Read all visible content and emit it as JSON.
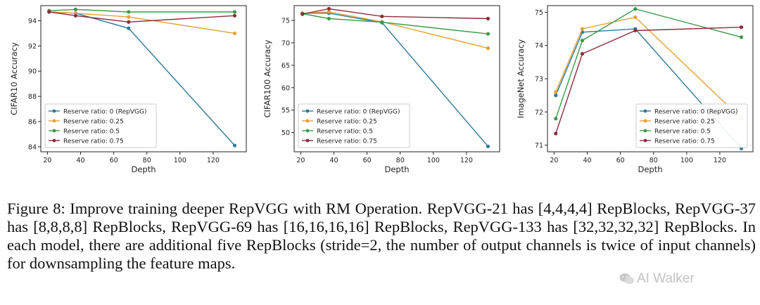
{
  "caption": "Figure 8: Improve training deeper RepVGG with RM Operation. RepVGG-21 has [4,4,4,4] RepBlocks, RepVGG-37 has [8,8,8,8] RepBlocks, RepVGG-69 has [16,16,16,16] RepBlocks, RepVGG-133 has [32,32,32,32] RepBlocks. In each model, there are additional five RepBlocks (stride=2, the number of output channels is twice of input channels) for downsampling the feature maps.",
  "watermark": "AI Walker",
  "colors": {
    "series": [
      "#2f7a9a",
      "#e2a13a",
      "#3b9a48",
      "#8c2e3c"
    ]
  },
  "chart_data": [
    {
      "type": "line",
      "xlabel": "Depth",
      "ylabel": "CIFAR10 Accuracy",
      "x": [
        21,
        37,
        69,
        133
      ],
      "xlim": [
        16,
        140
      ],
      "ylim": [
        83.6,
        95.2
      ],
      "xticks": [
        20,
        40,
        60,
        80,
        100,
        120
      ],
      "yticks": [
        84,
        86,
        88,
        90,
        92,
        94
      ],
      "legend_position": "lower-left",
      "series": [
        {
          "name": "Reserve ratio: 0 (RepVGG)",
          "values": [
            94.7,
            94.6,
            93.4,
            84.1
          ]
        },
        {
          "name": "Reserve ratio: 0.25",
          "values": [
            94.7,
            94.6,
            94.3,
            93.0
          ]
        },
        {
          "name": "Reserve ratio: 0.5",
          "values": [
            94.8,
            94.9,
            94.7,
            94.7
          ]
        },
        {
          "name": "Reserve ratio: 0.75",
          "values": [
            94.7,
            94.4,
            93.9,
            94.4
          ]
        }
      ]
    },
    {
      "type": "line",
      "xlabel": "Depth",
      "ylabel": "CIFAR100 Accuracy",
      "x": [
        21,
        37,
        69,
        133
      ],
      "xlim": [
        16,
        140
      ],
      "ylim": [
        45.7,
        78.3
      ],
      "xticks": [
        20,
        40,
        60,
        80,
        100,
        120
      ],
      "yticks": [
        50,
        55,
        60,
        65,
        70,
        75
      ],
      "legend_position": "lower-left",
      "series": [
        {
          "name": "Reserve ratio: 0 (RepVGG)",
          "values": [
            76.6,
            76.6,
            74.5,
            46.9
          ]
        },
        {
          "name": "Reserve ratio: 0.25",
          "values": [
            76.6,
            76.9,
            74.7,
            68.8
          ]
        },
        {
          "name": "Reserve ratio: 0.5",
          "values": [
            76.5,
            75.4,
            74.6,
            72.0
          ]
        },
        {
          "name": "Reserve ratio: 0.75",
          "values": [
            76.4,
            77.6,
            75.9,
            75.4
          ]
        }
      ]
    },
    {
      "type": "line",
      "xlabel": "Depth",
      "ylabel": "ImageNet Accuracy",
      "x": [
        21,
        37,
        69,
        133
      ],
      "xlim": [
        16,
        140
      ],
      "ylim": [
        70.8,
        75.2
      ],
      "xticks": [
        20,
        40,
        60,
        80,
        100,
        120
      ],
      "yticks": [
        71,
        72,
        73,
        74,
        75
      ],
      "legend_position": "lower-right",
      "series": [
        {
          "name": "Reserve ratio: 0 (RepVGG)",
          "values": [
            72.5,
            74.4,
            74.5,
            70.9
          ]
        },
        {
          "name": "Reserve ratio: 0.25",
          "values": [
            72.6,
            74.5,
            74.85,
            71.8
          ]
        },
        {
          "name": "Reserve ratio: 0.5",
          "values": [
            71.8,
            74.15,
            75.1,
            74.25
          ]
        },
        {
          "name": "Reserve ratio: 0.75",
          "values": [
            71.35,
            73.75,
            74.45,
            74.55
          ]
        }
      ]
    }
  ]
}
